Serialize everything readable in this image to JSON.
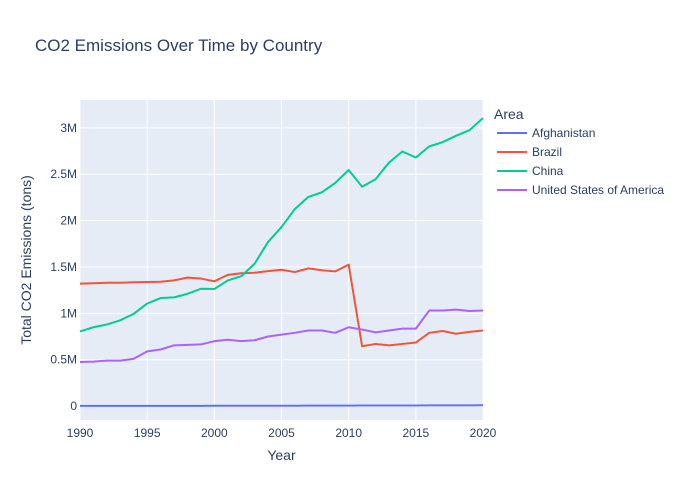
{
  "chart_data": {
    "type": "line",
    "title": "CO2 Emissions Over Time by Country",
    "xlabel": "Year",
    "ylabel": "Total CO2 Emissions (tons)",
    "xlim": [
      1990,
      2020
    ],
    "ylim": [
      -150000,
      3300000
    ],
    "x_ticks": [
      {
        "value": 1990,
        "label": "1990"
      },
      {
        "value": 1995,
        "label": "1995"
      },
      {
        "value": 2000,
        "label": "2000"
      },
      {
        "value": 2005,
        "label": "2005"
      },
      {
        "value": 2010,
        "label": "2010"
      },
      {
        "value": 2015,
        "label": "2015"
      },
      {
        "value": 2020,
        "label": "2020"
      }
    ],
    "y_ticks": [
      {
        "value": 0,
        "label": "0"
      },
      {
        "value": 500000,
        "label": "0.5M"
      },
      {
        "value": 1000000,
        "label": "1M"
      },
      {
        "value": 1500000,
        "label": "1.5M"
      },
      {
        "value": 2000000,
        "label": "2M"
      },
      {
        "value": 2500000,
        "label": "2.5M"
      },
      {
        "value": 3000000,
        "label": "3M"
      }
    ],
    "grid": true,
    "background_color": "#e5ecf6",
    "legend": {
      "title": "Area",
      "placement": "right"
    },
    "x": [
      1990,
      1991,
      1992,
      1993,
      1994,
      1995,
      1996,
      1997,
      1998,
      1999,
      2000,
      2001,
      2002,
      2003,
      2004,
      2005,
      2006,
      2007,
      2008,
      2009,
      2010,
      2011,
      2012,
      2013,
      2014,
      2015,
      2016,
      2017,
      2018,
      2019,
      2020
    ],
    "series": [
      {
        "name": "Afghanistan",
        "color": "#636efa",
        "values": [
          2000,
          2100,
          2200,
          2300,
          2400,
          2500,
          2600,
          2700,
          2800,
          2900,
          3000,
          3200,
          3400,
          3600,
          3800,
          4000,
          4300,
          4600,
          4900,
          5200,
          5500,
          5800,
          6100,
          6400,
          6700,
          7000,
          7300,
          7600,
          7900,
          8200,
          8500
        ]
      },
      {
        "name": "Brazil",
        "color": "#ef553b",
        "values": [
          1320000,
          1325000,
          1330000,
          1330000,
          1335000,
          1338000,
          1340000,
          1355000,
          1385000,
          1375000,
          1345000,
          1415000,
          1432000,
          1437000,
          1455000,
          1470000,
          1445000,
          1485000,
          1465000,
          1452000,
          1525000,
          645000,
          670000,
          655000,
          670000,
          685000,
          790000,
          810000,
          780000,
          800000,
          815000
        ]
      },
      {
        "name": "China",
        "color": "#00cc96",
        "values": [
          805000,
          850000,
          880000,
          925000,
          995000,
          1105000,
          1165000,
          1172000,
          1210000,
          1265000,
          1262000,
          1355000,
          1400000,
          1535000,
          1770000,
          1930000,
          2125000,
          2255000,
          2305000,
          2405000,
          2545000,
          2365000,
          2445000,
          2625000,
          2745000,
          2680000,
          2800000,
          2845000,
          2915000,
          2975000,
          3105000
        ]
      },
      {
        "name": "United States of America",
        "color": "#ab63fa",
        "values": [
          475000,
          480000,
          490000,
          490000,
          510000,
          590000,
          610000,
          655000,
          660000,
          665000,
          700000,
          715000,
          700000,
          710000,
          750000,
          770000,
          790000,
          815000,
          815000,
          790000,
          850000,
          825000,
          795000,
          815000,
          835000,
          835000,
          1030000,
          1030000,
          1040000,
          1025000,
          1030000
        ]
      }
    ]
  }
}
